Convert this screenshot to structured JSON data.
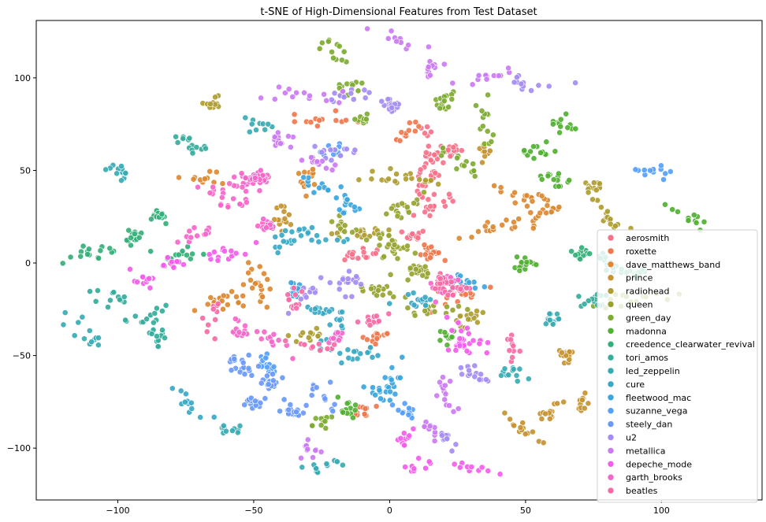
{
  "chart_data": {
    "type": "scatter",
    "title": "t-SNE of High-Dimensional Features from Test Dataset",
    "xlabel": "",
    "ylabel": "",
    "xlim": [
      -130,
      137
    ],
    "ylim": [
      -128,
      131
    ],
    "xticks": [
      -100,
      -50,
      0,
      50,
      100
    ],
    "yticks": [
      -100,
      -50,
      0,
      50,
      100
    ],
    "xtick_labels": [
      "−100",
      "−50",
      "0",
      "50",
      "100"
    ],
    "ytick_labels": [
      "−100",
      "−50",
      "0",
      "50",
      "100"
    ],
    "grid": false,
    "legend_position": "lower-right",
    "series": [
      {
        "name": "aerosmith",
        "color": "#f77189",
        "clusters": [
          [
            15,
            63,
            20
          ],
          [
            22,
            60,
            16
          ],
          [
            14,
            45,
            18
          ],
          [
            17,
            30,
            16
          ],
          [
            -10,
            5,
            16
          ],
          [
            8,
            15,
            14
          ]
        ]
      },
      {
        "name": "roxette",
        "color": "#f1774c",
        "clusters": [
          [
            -25,
            78,
            14
          ],
          [
            15,
            5,
            20
          ],
          [
            25,
            -18,
            14
          ],
          [
            -5,
            -40,
            14
          ],
          [
            -10,
            -80,
            12
          ],
          [
            6,
            70,
            12
          ]
        ]
      },
      {
        "name": "dave_matthews_band",
        "color": "#dc8932",
        "clusters": [
          [
            -30,
            48,
            14
          ],
          [
            -48,
            -10,
            20
          ],
          [
            -62,
            -20,
            20
          ],
          [
            50,
            35,
            18
          ],
          [
            55,
            25,
            16
          ],
          [
            40,
            20,
            14
          ],
          [
            -70,
            45,
            12
          ]
        ]
      },
      {
        "name": "prince",
        "color": "#c69432",
        "clusters": [
          [
            35,
            60,
            14
          ],
          [
            -40,
            25,
            14
          ],
          [
            65,
            -50,
            14
          ],
          [
            50,
            -90,
            14
          ],
          [
            70,
            -75,
            12
          ],
          [
            60,
            -80,
            12
          ]
        ]
      },
      {
        "name": "radiohead",
        "color": "#ae9d31",
        "clusters": [
          [
            -65,
            88,
            12
          ],
          [
            5,
            45,
            20
          ],
          [
            -10,
            15,
            16
          ],
          [
            80,
            25,
            14
          ],
          [
            75,
            40,
            14
          ],
          [
            30,
            -28,
            14
          ],
          [
            -30,
            -40,
            12
          ]
        ]
      },
      {
        "name": "queen",
        "color": "#97a431",
        "clusters": [
          [
            0,
            10,
            28
          ],
          [
            10,
            -5,
            22
          ],
          [
            -5,
            -15,
            18
          ],
          [
            5,
            30,
            18
          ],
          [
            -18,
            20,
            14
          ],
          [
            15,
            -25,
            14
          ]
        ]
      },
      {
        "name": "green_day",
        "color": "#7eab32",
        "clusters": [
          [
            -20,
            115,
            12
          ],
          [
            -15,
            95,
            12
          ],
          [
            20,
            85,
            16
          ],
          [
            35,
            75,
            14
          ],
          [
            -10,
            78,
            10
          ],
          [
            25,
            55,
            14
          ],
          [
            90,
            -20,
            14
          ],
          [
            -25,
            -85,
            12
          ]
        ]
      },
      {
        "name": "madonna",
        "color": "#50b131",
        "clusters": [
          [
            65,
            75,
            12
          ],
          [
            60,
            45,
            14
          ],
          [
            110,
            25,
            12
          ],
          [
            55,
            60,
            14
          ],
          [
            50,
            0,
            14
          ],
          [
            20,
            -40,
            12
          ],
          [
            -15,
            -80,
            12
          ]
        ]
      },
      {
        "name": "creedence_clearwater_revival",
        "color": "#33b07a",
        "clusters": [
          [
            -110,
            5,
            16
          ],
          [
            -95,
            15,
            18
          ],
          [
            -85,
            25,
            14
          ],
          [
            -75,
            5,
            12
          ],
          [
            70,
            5,
            12
          ],
          [
            90,
            -5,
            12
          ]
        ]
      },
      {
        "name": "tori_amos",
        "color": "#35ad9c",
        "clusters": [
          [
            -75,
            65,
            14
          ],
          [
            -100,
            -20,
            12
          ],
          [
            -85,
            -40,
            14
          ],
          [
            -90,
            -30,
            12
          ],
          [
            80,
            0,
            12
          ],
          [
            75,
            -20,
            14
          ]
        ]
      },
      {
        "name": "led_zeppelin",
        "color": "#37abb4",
        "clusters": [
          [
            -110,
            -40,
            14
          ],
          [
            -100,
            50,
            12
          ],
          [
            -60,
            -90,
            12
          ],
          [
            -25,
            -110,
            12
          ],
          [
            60,
            -30,
            14
          ],
          [
            45,
            -60,
            12
          ],
          [
            -50,
            75,
            10
          ]
        ]
      },
      {
        "name": "cure",
        "color": "#38a9c5",
        "clusters": [
          [
            -30,
            15,
            14
          ],
          [
            -40,
            10,
            14
          ],
          [
            10,
            -20,
            16
          ],
          [
            -25,
            -25,
            12
          ],
          [
            -10,
            -50,
            14
          ],
          [
            -20,
            -35,
            14
          ],
          [
            -75,
            -75,
            12
          ]
        ]
      },
      {
        "name": "fleetwood_mac",
        "color": "#3aa5df",
        "clusters": [
          [
            -25,
            40,
            14
          ],
          [
            -15,
            30,
            12
          ],
          [
            25,
            -10,
            14
          ],
          [
            0,
            -65,
            14
          ],
          [
            -35,
            -15,
            12
          ],
          [
            -5,
            -70,
            10
          ]
        ]
      },
      {
        "name": "suzanne_vega",
        "color": "#55a0fb",
        "clusters": [
          [
            -20,
            60,
            10
          ],
          [
            97,
            50,
            12
          ],
          [
            -45,
            -55,
            16
          ],
          [
            5,
            -80,
            12
          ]
        ]
      },
      {
        "name": "steely_dan",
        "color": "#6a99f8",
        "clusters": [
          [
            -55,
            -55,
            20
          ],
          [
            -45,
            -65,
            20
          ],
          [
            -35,
            -80,
            18
          ],
          [
            -50,
            -75,
            14
          ],
          [
            -25,
            -70,
            12
          ]
        ]
      },
      {
        "name": "u2",
        "color": "#a48cf4",
        "clusters": [
          [
            -15,
            90,
            12
          ],
          [
            0,
            85,
            16
          ],
          [
            -20,
            60,
            12
          ],
          [
            -15,
            -10,
            16
          ],
          [
            30,
            -60,
            14
          ],
          [
            -30,
            -15,
            12
          ],
          [
            20,
            -95,
            12
          ],
          [
            50,
            97,
            12
          ]
        ]
      },
      {
        "name": "metallica",
        "color": "#cc7af4",
        "clusters": [
          [
            -35,
            90,
            14
          ],
          [
            -40,
            65,
            14
          ],
          [
            -25,
            55,
            12
          ],
          [
            35,
            100,
            12
          ],
          [
            15,
            105,
            12
          ],
          [
            5,
            120,
            10
          ],
          [
            20,
            -70,
            14
          ],
          [
            15,
            -90,
            10
          ],
          [
            -30,
            -100,
            10
          ]
        ]
      },
      {
        "name": "depeche_mode",
        "color": "#f45deb",
        "clusters": [
          [
            -60,
            5,
            14
          ],
          [
            -80,
            0,
            14
          ],
          [
            -90,
            -10,
            12
          ],
          [
            25,
            -45,
            16
          ],
          [
            30,
            -40,
            14
          ],
          [
            30,
            -110,
            10
          ],
          [
            10,
            -110,
            10
          ],
          [
            5,
            -95,
            10
          ]
        ]
      },
      {
        "name": "garth_brooks",
        "color": "#f566ca",
        "clusters": [
          [
            -50,
            45,
            40
          ],
          [
            -60,
            35,
            20
          ],
          [
            -45,
            20,
            16
          ],
          [
            -70,
            15,
            12
          ],
          [
            20,
            -12,
            18
          ],
          [
            -20,
            -40,
            12
          ],
          [
            -55,
            -35,
            12
          ],
          [
            -40,
            -45,
            12
          ]
        ]
      },
      {
        "name": "beatles",
        "color": "#f66ba6",
        "clusters": [
          [
            20,
            -10,
            20
          ],
          [
            25,
            -15,
            16
          ],
          [
            -5,
            -30,
            12
          ],
          [
            -35,
            -20,
            12
          ],
          [
            -65,
            -30,
            10
          ],
          [
            45,
            -45,
            10
          ],
          [
            -25,
            -45,
            10
          ]
        ]
      }
    ]
  }
}
